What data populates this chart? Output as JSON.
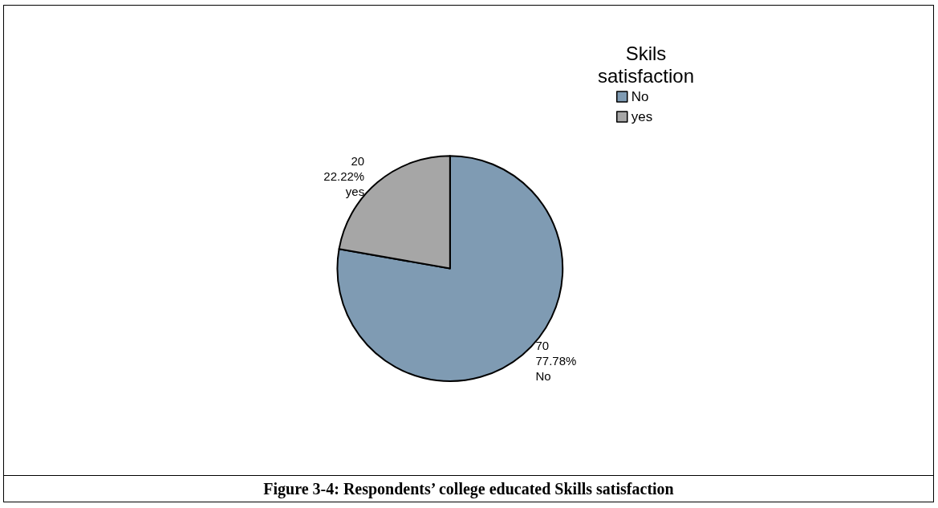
{
  "chart_data": {
    "type": "pie",
    "legend_title": "Skils satisfaction",
    "annotations": [
      "Figure 3-4: Respondents’ college educated Skills satisfaction"
    ],
    "categories": [
      "No",
      "yes"
    ],
    "values": [
      70,
      20
    ],
    "colors": [
      "#7f9bb3",
      "#a6a6a6"
    ],
    "value_labels": [
      "70\n77.78%\nNo",
      "20\n22.22%\nyes"
    ],
    "legend": "top right"
  }
}
